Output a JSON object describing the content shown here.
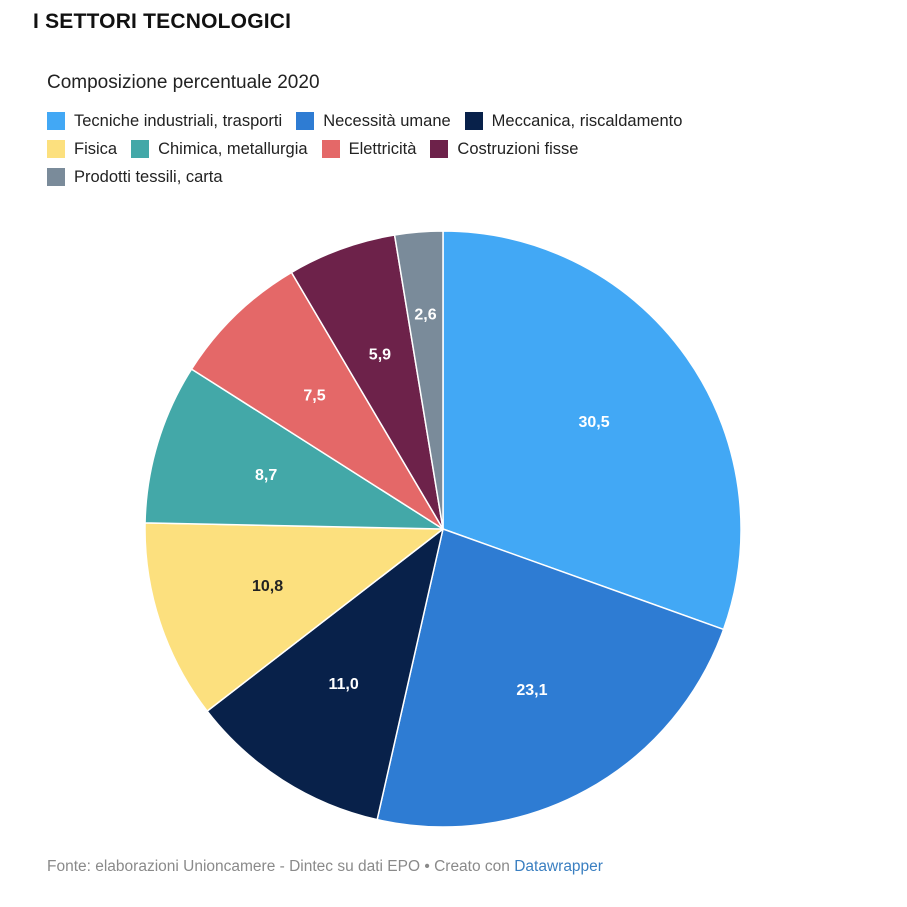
{
  "header": {
    "title": "I SETTORI TECNOLOGICI"
  },
  "chart_data": {
    "type": "pie",
    "title": "Composizione percentuale 2020",
    "slices": [
      {
        "label": "Tecniche industriali, trasporti",
        "value": 30.5,
        "display": "30,5",
        "color": "#42a8f5",
        "label_color": "#ffffff"
      },
      {
        "label": "Necessità umane",
        "value": 23.1,
        "display": "23,1",
        "color": "#2e7cd3",
        "label_color": "#ffffff"
      },
      {
        "label": "Meccanica, riscaldamento",
        "value": 11.0,
        "display": "11,0",
        "color": "#08214a",
        "label_color": "#ffffff"
      },
      {
        "label": "Fisica",
        "value": 10.8,
        "display": "10,8",
        "color": "#fce07e",
        "label_color": "#222222"
      },
      {
        "label": "Chimica, metallurgia",
        "value": 8.7,
        "display": "8,7",
        "color": "#43a8a8",
        "label_color": "#ffffff"
      },
      {
        "label": "Elettricità",
        "value": 7.5,
        "display": "7,5",
        "color": "#e46868",
        "label_color": "#ffffff"
      },
      {
        "label": "Costruzioni fisse",
        "value": 5.9,
        "display": "5,9",
        "color": "#6d224a",
        "label_color": "#ffffff"
      },
      {
        "label": "Prodotti tessili, carta",
        "value": 2.6,
        "display": "2,6",
        "color": "#7a8b9a",
        "label_color": "#ffffff"
      }
    ],
    "legend_position": "top-left"
  },
  "footer": {
    "source_text": "Fonte: elaborazioni Unioncamere - Dintec su dati EPO • Creato con ",
    "link_text": "Datawrapper"
  }
}
